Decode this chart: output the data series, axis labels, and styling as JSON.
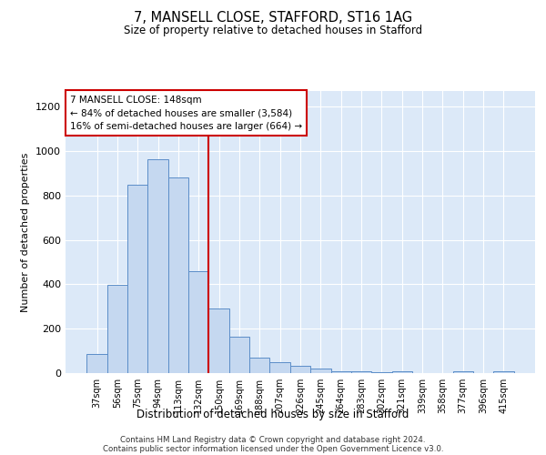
{
  "title1": "7, MANSELL CLOSE, STAFFORD, ST16 1AG",
  "title2": "Size of property relative to detached houses in Stafford",
  "xlabel": "Distribution of detached houses by size in Stafford",
  "ylabel": "Number of detached properties",
  "categories": [
    "37sqm",
    "56sqm",
    "75sqm",
    "94sqm",
    "113sqm",
    "132sqm",
    "150sqm",
    "169sqm",
    "188sqm",
    "207sqm",
    "226sqm",
    "245sqm",
    "264sqm",
    "283sqm",
    "302sqm",
    "321sqm",
    "339sqm",
    "358sqm",
    "377sqm",
    "396sqm",
    "415sqm"
  ],
  "values": [
    88,
    397,
    847,
    964,
    880,
    460,
    290,
    162,
    70,
    50,
    32,
    20,
    10,
    7,
    5,
    10,
    0,
    0,
    10,
    0,
    10
  ],
  "bar_color": "#c5d8f0",
  "bar_edgecolor": "#5b8dc8",
  "vline_color": "#cc0000",
  "annotation_text": "7 MANSELL CLOSE: 148sqm\n← 84% of detached houses are smaller (3,584)\n16% of semi-detached houses are larger (664) →",
  "annotation_box_edgecolor": "#cc0000",
  "ylim": [
    0,
    1270
  ],
  "yticks": [
    0,
    200,
    400,
    600,
    800,
    1000,
    1200
  ],
  "footer1": "Contains HM Land Registry data © Crown copyright and database right 2024.",
  "footer2": "Contains public sector information licensed under the Open Government Licence v3.0.",
  "plot_bg_color": "#dce9f8"
}
